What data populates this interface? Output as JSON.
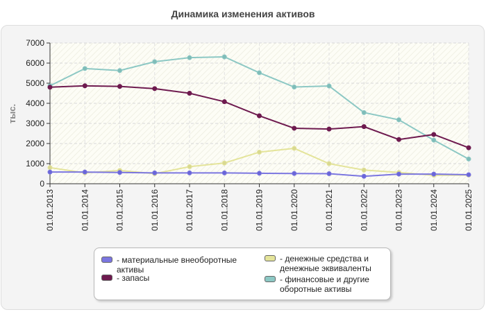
{
  "title": "Динамика изменения активов",
  "chart_data": {
    "type": "line",
    "title": "Динамика изменения активов",
    "xlabel": "",
    "ylabel": "тыс.",
    "ylim": [
      0,
      7000
    ],
    "yticks": [
      "0",
      "1000",
      "2000",
      "3000",
      "4000",
      "5000",
      "6000",
      "7000"
    ],
    "categories": [
      "01.01.2013",
      "01.01.2014",
      "01.01.2015",
      "01.01.2016",
      "01.01.2017",
      "01.01.2018",
      "01.01.2019",
      "01.01.2020",
      "01.01.2021",
      "01.01.2022",
      "01.01.2023",
      "01.01.2024",
      "01.01.2025"
    ],
    "series": [
      {
        "name": "- материальные внеоборотные активы",
        "color": "#7b76e0",
        "marker": "#6a66d8",
        "values": [
          580,
          580,
          560,
          540,
          540,
          540,
          520,
          510,
          500,
          370,
          480,
          480,
          450
        ]
      },
      {
        "name": "- денежные средства и денежные эквиваленты",
        "color": "#e4e49a",
        "marker": "#d8d890",
        "values": [
          800,
          540,
          660,
          500,
          850,
          1030,
          1570,
          1760,
          1000,
          680,
          560,
          420,
          430
        ]
      },
      {
        "name": "- запасы",
        "color": "#6e1a4f",
        "marker": "#6e1a4f",
        "values": [
          4800,
          4870,
          4840,
          4730,
          4500,
          4080,
          3380,
          2760,
          2720,
          2840,
          2200,
          2450,
          1790
        ]
      },
      {
        "name": "- финансовые и другие оборотные активы",
        "color": "#8cc8c4",
        "marker": "#7fbcb8",
        "values": [
          4870,
          5730,
          5630,
          6070,
          6270,
          6310,
          5520,
          4810,
          4860,
          3540,
          3180,
          2170,
          1230
        ]
      }
    ],
    "legend_position": "bottom"
  }
}
